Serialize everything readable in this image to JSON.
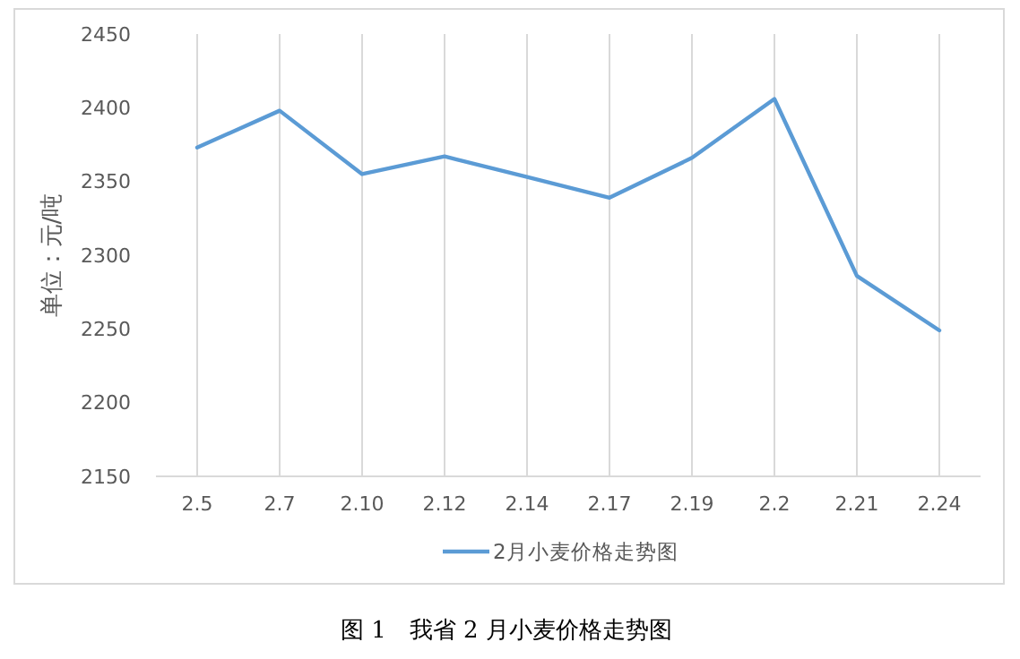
{
  "chart_data": {
    "type": "line",
    "ylabel": "单位：元/吨",
    "categories": [
      "2.5",
      "2.7",
      "2.10",
      "2.12",
      "2.14",
      "2.17",
      "2.19",
      "2.2",
      "2.21",
      "2.24"
    ],
    "series": [
      {
        "name": "2月小麦价格走势图",
        "color": "#5b9bd5",
        "values": [
          2373,
          2398,
          2355,
          2367,
          2353,
          2339,
          2366,
          2406,
          2286,
          2249
        ]
      }
    ],
    "ylim": [
      2150,
      2450
    ],
    "yticks": [
      2150,
      2200,
      2250,
      2300,
      2350,
      2400,
      2450
    ],
    "grid": "x",
    "legend": "bottom",
    "marker": "none",
    "line_style": "solid",
    "annotations": [
      "图 1　我省 2 月小麦价格走势图"
    ]
  }
}
